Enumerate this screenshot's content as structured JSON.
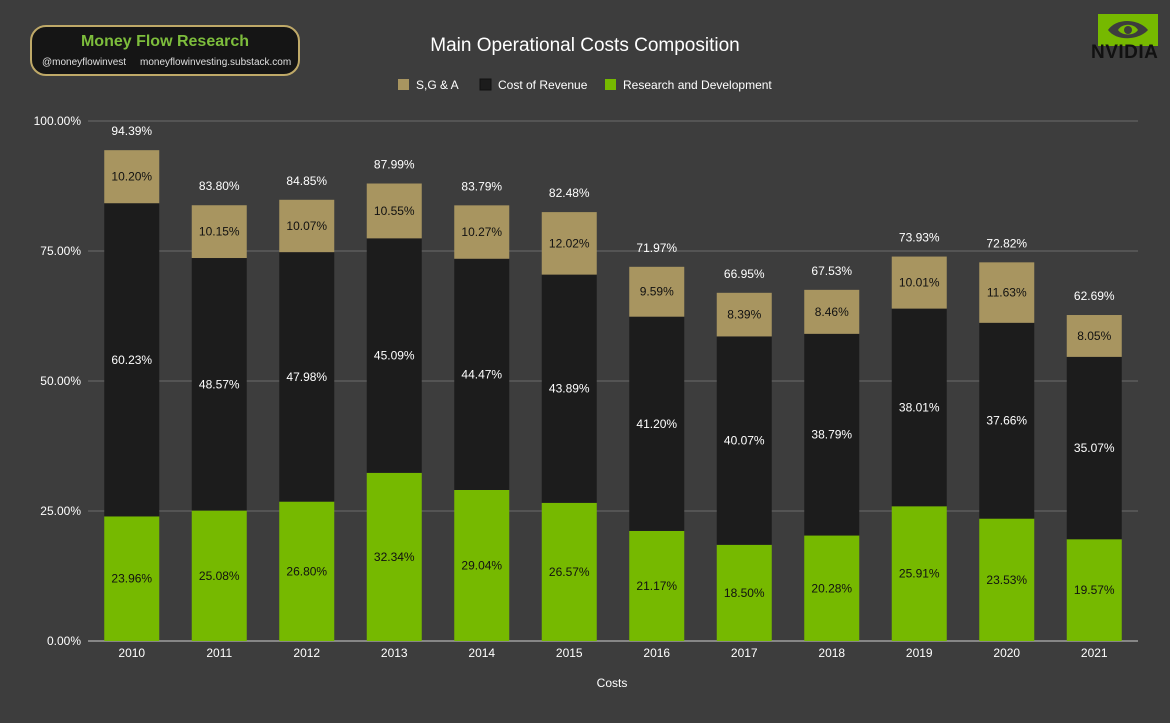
{
  "branding": {
    "name": "Money Flow Research",
    "handle": "@moneyflowinvest",
    "site": "moneyflowinvesting.substack.com",
    "logo_text": "NVIDIA",
    "logo_icon": "nvidia-eye-icon",
    "accent_color": "#7dbd3c",
    "border_color": "#bfa968"
  },
  "chart_data": {
    "type": "bar",
    "stacked": true,
    "title": "Main Operational Costs Composition",
    "xlabel": "Costs",
    "ylabel": "",
    "ylim": [
      0,
      100
    ],
    "y_ticks": [
      "0.00%",
      "25.00%",
      "50.00%",
      "75.00%",
      "100.00%"
    ],
    "grid": true,
    "legend_position": "top",
    "categories": [
      "2010",
      "2011",
      "2012",
      "2013",
      "2014",
      "2015",
      "2016",
      "2017",
      "2018",
      "2019",
      "2020",
      "2021"
    ],
    "series": [
      {
        "name": "Research and Development",
        "color": "#76b900",
        "values": [
          23.96,
          25.08,
          26.8,
          32.34,
          29.04,
          26.57,
          21.17,
          18.5,
          20.28,
          25.91,
          23.53,
          19.57
        ],
        "labels": [
          "23.96%",
          "25.08%",
          "26.80%",
          "32.34%",
          "29.04%",
          "26.57%",
          "21.17%",
          "18.50%",
          "20.28%",
          "25.91%",
          "23.53%",
          "19.57%"
        ]
      },
      {
        "name": "Cost of Revenue",
        "color": "#1c1c1c",
        "values": [
          60.23,
          48.57,
          47.98,
          45.09,
          44.47,
          43.89,
          41.2,
          40.07,
          38.79,
          38.01,
          37.66,
          35.07
        ],
        "labels": [
          "60.23%",
          "48.57%",
          "47.98%",
          "45.09%",
          "44.47%",
          "43.89%",
          "41.20%",
          "40.07%",
          "38.79%",
          "38.01%",
          "37.66%",
          "35.07%"
        ]
      },
      {
        "name": "S,G & A",
        "color": "#a89560",
        "values": [
          10.2,
          10.15,
          10.07,
          10.55,
          10.27,
          12.02,
          9.59,
          8.39,
          8.46,
          10.01,
          11.63,
          8.05
        ],
        "labels": [
          "10.20%",
          "10.15%",
          "10.07%",
          "10.55%",
          "10.27%",
          "12.02%",
          "9.59%",
          "8.39%",
          "8.46%",
          "10.01%",
          "11.63%",
          "8.05%"
        ]
      }
    ],
    "legend_order": [
      "S,G & A",
      "Cost of Revenue",
      "Research and Development"
    ],
    "totals": [
      94.39,
      83.8,
      84.85,
      87.99,
      83.79,
      82.48,
      71.97,
      66.95,
      67.53,
      73.93,
      72.82,
      62.69
    ],
    "total_labels": [
      "94.39%",
      "83.80%",
      "84.85%",
      "87.99%",
      "83.79%",
      "82.48%",
      "71.97%",
      "66.95%",
      "67.53%",
      "73.93%",
      "72.82%",
      "62.69%"
    ]
  }
}
